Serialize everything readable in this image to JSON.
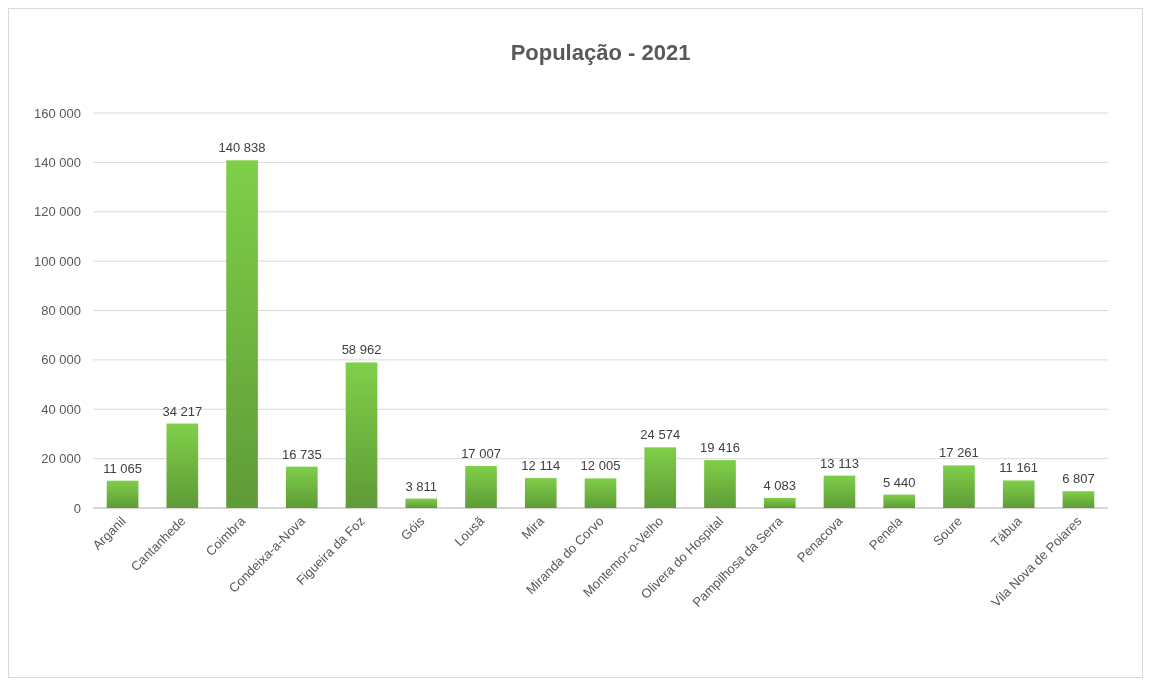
{
  "chart_data": {
    "type": "bar",
    "title": "População - 2021",
    "categories": [
      "Arganil",
      "Cantanhede",
      "Coimbra",
      "Condeixa-a-Nova",
      "Figueira da Foz",
      "Góis",
      "Lousã",
      "Mira",
      "Miranda do Corvo",
      "Montemor-o-Velho",
      "Olivera do Hospital",
      "Pampilhosa da Serra",
      "Penacova",
      "Penela",
      "Soure",
      "Tábua",
      "Vila Nova de Poiares"
    ],
    "values": [
      11065,
      34217,
      140838,
      16735,
      58962,
      3811,
      17007,
      12114,
      12005,
      24574,
      19416,
      4083,
      13113,
      5440,
      17261,
      11161,
      6807
    ],
    "value_labels": [
      "11 065",
      "34 217",
      "140 838",
      "16 735",
      "58 962",
      "3 811",
      "17 007",
      "12 114",
      "12 005",
      "24 574",
      "19 416",
      "4 083",
      "13 113",
      "5 440",
      "17 261",
      "11 161",
      "6 807"
    ],
    "color": "#6aad3d",
    "ylim": [
      0,
      160000
    ],
    "yticks": [
      {
        "value": 0,
        "label": "0"
      },
      {
        "value": 20000,
        "label": "20 000"
      },
      {
        "value": 40000,
        "label": "40 000"
      },
      {
        "value": 60000,
        "label": "60 000"
      },
      {
        "value": 80000,
        "label": "80 000"
      },
      {
        "value": 100000,
        "label": "100 000"
      },
      {
        "value": 120000,
        "label": "120 000"
      },
      {
        "value": 140000,
        "label": "140 000"
      },
      {
        "value": 160000,
        "label": "160 000"
      }
    ],
    "grid": "y"
  }
}
